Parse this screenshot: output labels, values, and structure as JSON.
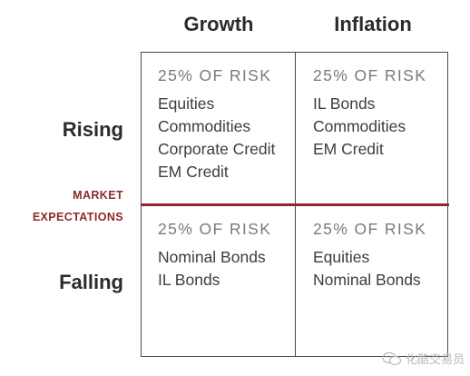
{
  "columns": [
    "Growth",
    "Inflation"
  ],
  "rows": [
    "Rising",
    "Falling"
  ],
  "divider_label": [
    "MARKET",
    "EXPECTATIONS"
  ],
  "colors": {
    "divider": "#8b2a2a",
    "header_text": "#2b2b2b",
    "risk_text": "#7a7a7a"
  },
  "cells": {
    "rising_growth": {
      "risk": "25% OF RISK",
      "items": [
        "Equities",
        "Commodities",
        "Corporate Credit",
        "EM Credit"
      ]
    },
    "rising_inflation": {
      "risk": "25% OF RISK",
      "items": [
        "IL Bonds",
        "Commodities",
        "EM Credit"
      ]
    },
    "falling_growth": {
      "risk": "25% OF RISK",
      "items": [
        "Nominal Bonds",
        "IL Bonds"
      ]
    },
    "falling_inflation": {
      "risk": "25% OF RISK",
      "items": [
        "Equities",
        "Nominal Bonds"
      ]
    }
  },
  "watermark": {
    "icon": "wechat-icon",
    "text": "化酷交易员"
  }
}
